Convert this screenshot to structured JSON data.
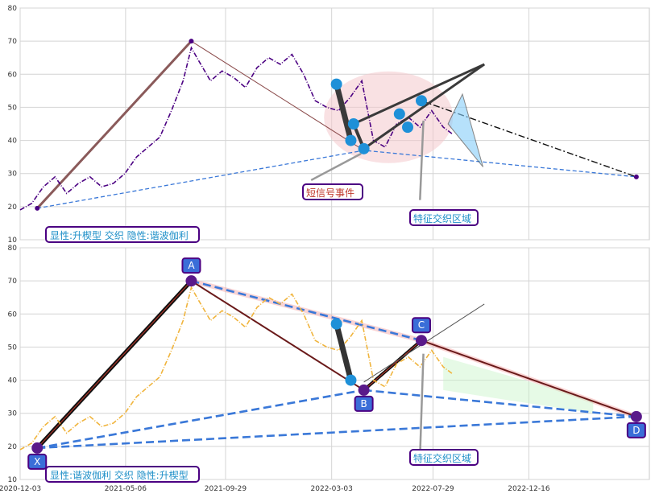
{
  "chart_data": [
    {
      "type": "line",
      "panel": "top",
      "xlim": [
        "2020-12-03",
        "2023-06-10"
      ],
      "ylim": [
        10,
        80
      ],
      "yticks": [
        10,
        20,
        30,
        40,
        50,
        60,
        70,
        80
      ],
      "grid": true,
      "colors": {
        "price": "#4b0082",
        "wedge_line": "#3a3a3a",
        "ellipse": "#f4c8cc",
        "point": "#1e90d8"
      },
      "price": {
        "x": [
          "2020-12-03",
          "2020-12-20",
          "2021-01-06",
          "2021-01-23",
          "2021-02-09",
          "2021-02-26",
          "2021-03-15",
          "2021-04-01",
          "2021-04-18",
          "2021-05-05",
          "2021-05-22",
          "2021-06-08",
          "2021-06-25",
          "2021-07-12",
          "2021-07-29",
          "2021-08-10",
          "2021-08-21",
          "2021-09-07",
          "2021-09-24",
          "2021-10-11",
          "2021-10-28",
          "2021-11-14",
          "2021-12-01",
          "2021-12-18",
          "2022-01-04",
          "2022-01-21",
          "2022-02-07",
          "2022-02-24",
          "2022-03-13",
          "2022-03-30",
          "2022-04-16",
          "2022-05-03",
          "2022-05-20",
          "2022-06-06",
          "2022-06-23",
          "2022-07-10",
          "2022-07-27",
          "2022-08-13",
          "2022-08-26"
        ],
        "y": [
          19,
          21,
          26,
          29,
          24,
          27,
          29,
          26,
          27,
          30,
          35,
          38,
          41,
          49,
          58,
          68,
          64,
          58,
          61,
          59,
          56,
          62,
          65,
          63,
          66,
          60,
          52,
          50,
          49,
          53,
          58,
          40,
          38,
          45,
          47,
          44,
          49,
          44,
          42
        ]
      },
      "pivots": [
        {
          "x": "2020-12-28",
          "y": 19.5
        },
        {
          "x": "2021-08-10",
          "y": 70
        },
        {
          "x": "2022-04-19",
          "y": 37
        },
        {
          "x": "2023-05-22",
          "y": 29
        }
      ],
      "points": [
        {
          "x": "2022-03-10",
          "y": 57
        },
        {
          "x": "2022-03-31",
          "y": 40
        },
        {
          "x": "2022-04-04",
          "y": 45
        },
        {
          "x": "2022-04-19",
          "y": 37.5
        },
        {
          "x": "2022-06-10",
          "y": 48
        },
        {
          "x": "2022-06-22",
          "y": 44
        },
        {
          "x": "2022-07-12",
          "y": 52
        }
      ],
      "labels": {
        "panel_caption": "显性:升楔型 交织 隐性:谐波伽利",
        "event_label": "短信号事件",
        "zone_label": "特征交织区域"
      }
    },
    {
      "type": "line",
      "panel": "bottom",
      "xlim": [
        "2020-12-03",
        "2023-06-10"
      ],
      "ylim": [
        10,
        80
      ],
      "yticks": [
        10,
        20,
        30,
        40,
        50,
        60,
        70,
        80
      ],
      "xticks": [
        "2020-12-03",
        "2021-05-06",
        "2021-09-29",
        "2022-03-03",
        "2022-07-29",
        "2022-12-16"
      ],
      "grid": true,
      "colors": {
        "price": "#f0b43c",
        "dashed": "#3a78d8",
        "pivot": "#5a1a8a",
        "label_box": "#3a6ed8"
      },
      "price": {
        "x": [
          "2020-12-03",
          "2020-12-20",
          "2021-01-06",
          "2021-01-23",
          "2021-02-09",
          "2021-02-26",
          "2021-03-15",
          "2021-04-01",
          "2021-04-18",
          "2021-05-05",
          "2021-05-22",
          "2021-06-08",
          "2021-06-25",
          "2021-07-12",
          "2021-07-29",
          "2021-08-10",
          "2021-08-21",
          "2021-09-07",
          "2021-09-24",
          "2021-10-11",
          "2021-10-28",
          "2021-11-14",
          "2021-12-01",
          "2021-12-18",
          "2022-01-04",
          "2022-01-21",
          "2022-02-07",
          "2022-02-24",
          "2022-03-13",
          "2022-03-30",
          "2022-04-16",
          "2022-05-03",
          "2022-05-20",
          "2022-06-06",
          "2022-06-23",
          "2022-07-10",
          "2022-07-27",
          "2022-08-13",
          "2022-08-26"
        ],
        "y": [
          19,
          21,
          26,
          29,
          24,
          27,
          29,
          26,
          27,
          30,
          35,
          38,
          41,
          49,
          58,
          68,
          64,
          58,
          61,
          59,
          56,
          62,
          65,
          63,
          66,
          60,
          52,
          50,
          49,
          53,
          58,
          40,
          38,
          45,
          47,
          44,
          49,
          44,
          42
        ]
      },
      "pivots": [
        {
          "label": "X",
          "x": "2020-12-28",
          "y": 19.5
        },
        {
          "label": "A",
          "x": "2021-08-10",
          "y": 70
        },
        {
          "label": "B",
          "x": "2022-04-19",
          "y": 37
        },
        {
          "label": "C",
          "x": "2022-07-12",
          "y": 52
        },
        {
          "label": "D",
          "x": "2023-05-22",
          "y": 29
        }
      ],
      "labels": {
        "panel_caption": "显性:谐波伽利 交织 隐性:升楔型",
        "zone_label": "特征交织区域"
      }
    }
  ]
}
